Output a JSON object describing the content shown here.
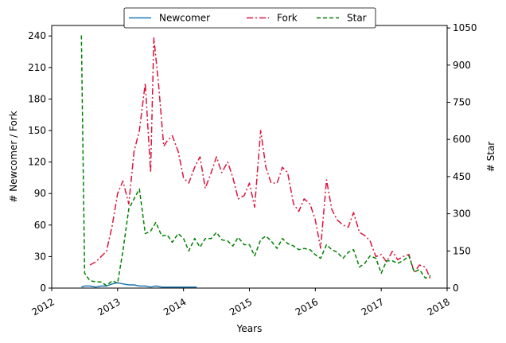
{
  "chart_data": {
    "type": "line",
    "xlabel": "Years",
    "ylabel_left": "# Newcomer / Fork",
    "ylabel_right": "# Star",
    "xlim": [
      2012.0,
      2018.0
    ],
    "ylim_left": [
      0,
      250
    ],
    "ylim_right": [
      0,
      1060
    ],
    "xticks": [
      "2012",
      "2013",
      "2014",
      "2015",
      "2016",
      "2017",
      "2018"
    ],
    "yticks_left": [
      "0",
      "30",
      "60",
      "90",
      "120",
      "150",
      "180",
      "210",
      "240"
    ],
    "yticks_right": [
      "0",
      "150",
      "300",
      "450",
      "600",
      "750",
      "900",
      "1050"
    ],
    "grid": false,
    "legend_position": "top-center",
    "legend": [
      "Newcomer",
      "Fork",
      "Star"
    ],
    "colors": {
      "Newcomer": "#1f77b4",
      "Fork": "#dc143c",
      "Star": "#008000"
    },
    "series": [
      {
        "name": "Newcomer",
        "axis": "left",
        "style": "solid",
        "x": [
          2012.45,
          2012.5,
          2012.58,
          2012.67,
          2012.75,
          2012.83,
          2012.92,
          2013.0,
          2013.08,
          2013.17,
          2013.25,
          2013.33,
          2013.42,
          2013.5,
          2013.58,
          2013.67,
          2013.75,
          2013.83,
          2013.92,
          2014.0,
          2014.08,
          2014.17,
          2014.2
        ],
        "y": [
          1,
          2,
          2,
          1,
          2,
          2,
          4,
          5,
          4,
          3,
          3,
          2,
          2,
          1,
          2,
          1,
          1,
          1,
          1,
          1,
          1,
          1,
          1
        ]
      },
      {
        "name": "Fork",
        "axis": "left",
        "style": "dashdot",
        "x": [
          2012.58,
          2012.67,
          2012.75,
          2012.83,
          2012.92,
          2013.0,
          2013.08,
          2013.17,
          2013.25,
          2013.33,
          2013.42,
          2013.5,
          2013.55,
          2013.62,
          2013.7,
          2013.75,
          2013.83,
          2013.92,
          2014.0,
          2014.08,
          2014.17,
          2014.25,
          2014.33,
          2014.42,
          2014.5,
          2014.58,
          2014.67,
          2014.75,
          2014.83,
          2014.92,
          2015.0,
          2015.08,
          2015.17,
          2015.25,
          2015.33,
          2015.42,
          2015.5,
          2015.58,
          2015.67,
          2015.75,
          2015.83,
          2015.92,
          2016.0,
          2016.08,
          2016.17,
          2016.25,
          2016.33,
          2016.42,
          2016.5,
          2016.58,
          2016.67,
          2016.75,
          2016.83,
          2016.92,
          2017.0,
          2017.08,
          2017.17,
          2017.25,
          2017.33,
          2017.42,
          2017.5,
          2017.58,
          2017.67,
          2017.75
        ],
        "y": [
          22,
          25,
          30,
          35,
          60,
          90,
          102,
          80,
          130,
          150,
          195,
          110,
          238,
          195,
          135,
          140,
          145,
          130,
          105,
          100,
          115,
          125,
          95,
          110,
          125,
          110,
          120,
          105,
          85,
          88,
          100,
          77,
          150,
          115,
          100,
          100,
          115,
          110,
          80,
          73,
          85,
          80,
          65,
          38,
          103,
          75,
          65,
          60,
          58,
          72,
          53,
          50,
          45,
          30,
          32,
          25,
          35,
          27,
          30,
          32,
          15,
          22,
          20,
          8
        ]
      },
      {
        "name": "Star",
        "axis": "right",
        "style": "dashed",
        "x": [
          2012.45,
          2012.5,
          2012.58,
          2012.67,
          2012.75,
          2012.83,
          2012.92,
          2013.0,
          2013.08,
          2013.17,
          2013.25,
          2013.33,
          2013.42,
          2013.5,
          2013.58,
          2013.67,
          2013.75,
          2013.83,
          2013.92,
          2014.0,
          2014.08,
          2014.17,
          2014.25,
          2014.33,
          2014.42,
          2014.5,
          2014.58,
          2014.67,
          2014.75,
          2014.83,
          2014.92,
          2015.0,
          2015.08,
          2015.17,
          2015.25,
          2015.33,
          2015.42,
          2015.5,
          2015.58,
          2015.67,
          2015.75,
          2015.83,
          2015.92,
          2016.0,
          2016.08,
          2016.17,
          2016.25,
          2016.33,
          2016.42,
          2016.5,
          2016.58,
          2016.67,
          2016.75,
          2016.83,
          2016.92,
          2017.0,
          2017.08,
          2017.17,
          2017.25,
          2017.33,
          2017.42,
          2017.5,
          2017.58,
          2017.67,
          2017.75
        ],
        "y": [
          1020,
          60,
          30,
          25,
          25,
          10,
          30,
          20,
          150,
          320,
          360,
          400,
          220,
          230,
          265,
          210,
          215,
          185,
          220,
          200,
          150,
          200,
          165,
          200,
          200,
          225,
          195,
          190,
          170,
          205,
          175,
          175,
          130,
          195,
          210,
          190,
          160,
          200,
          180,
          170,
          155,
          160,
          155,
          135,
          120,
          175,
          155,
          145,
          120,
          145,
          155,
          85,
          100,
          130,
          120,
          60,
          110,
          110,
          100,
          110,
          130,
          65,
          75,
          40,
          50
        ]
      }
    ]
  }
}
